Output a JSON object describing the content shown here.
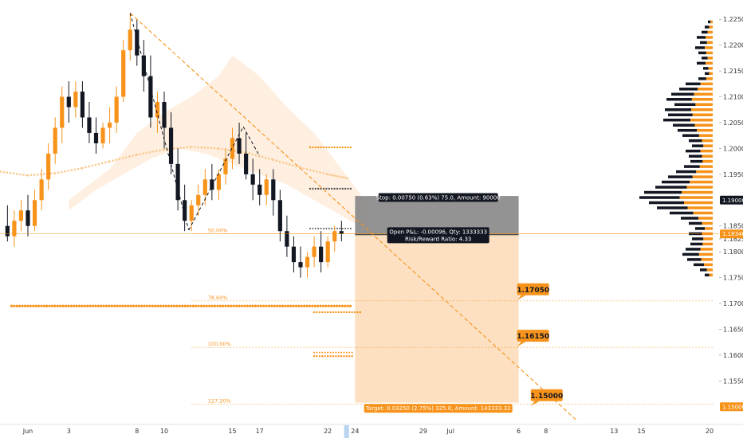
{
  "chart_data": {
    "type": "candlestick",
    "instrument_note": "",
    "x_tick_labels": [
      "Jun",
      "3",
      "8",
      "10",
      "15",
      "17",
      "22",
      "24",
      "29",
      "Jul",
      "6",
      "8",
      "13",
      "15",
      "20"
    ],
    "x_tick_days": [
      0,
      3,
      8,
      10,
      15,
      17,
      22,
      24,
      29,
      31,
      36,
      38,
      43,
      45,
      50
    ],
    "y_tick_labels": [
      "1.22500",
      "1.22000",
      "1.21500",
      "1.21000",
      "1.20500",
      "1.20000",
      "1.19500",
      "1.18500",
      "1.18250",
      "1.18000",
      "1.17500",
      "1.17000",
      "1.16500",
      "1.16000",
      "1.15500"
    ],
    "y_tick_values": [
      1.225,
      1.22,
      1.215,
      1.21,
      1.205,
      1.2,
      1.195,
      1.185,
      1.1825,
      1.18,
      1.175,
      1.17,
      1.165,
      1.16,
      1.155
    ],
    "ylim": [
      1.1475,
      1.2275
    ],
    "current_price_label": "1.18346",
    "current_price": 1.18346,
    "badge_1190": "1.19000",
    "badge_1150": "1.15000",
    "target_labels": [
      {
        "text": "1.17050",
        "value": 1.1705,
        "day": 37
      },
      {
        "text": "1.16150",
        "value": 1.1615,
        "day": 37
      },
      {
        "text": "1.15000",
        "value": 1.15,
        "day": 38
      }
    ],
    "fib_levels": [
      {
        "label": "50.00%",
        "value": 1.1835
      },
      {
        "label": "78.60%",
        "value": 1.1705
      },
      {
        "label": "100.00%",
        "value": 1.1615
      },
      {
        "label": "127.20%",
        "value": 1.1505
      }
    ],
    "position": {
      "type": "short",
      "entry": 1.1833,
      "stop": 1.1908,
      "target": 1.1508,
      "start_day": 24,
      "end_day": 36,
      "stop_label": "Stop: 0.00750 (0.63%) 75.0, Amount: 90000",
      "pnl_label": "Open P&L: -0.00096, Qty: 1333333",
      "rr_label": "Risk/Reward Ratio: 4.33",
      "target_label": "Target: 0.03250 (2.75%) 325.0, Amount: 143333.32"
    },
    "candles": [
      {
        "d": -1.5,
        "o": 1.185,
        "h": 1.189,
        "c": 1.183,
        "l": 1.182
      },
      {
        "d": -1,
        "o": 1.183,
        "h": 1.188,
        "c": 1.186,
        "l": 1.181
      },
      {
        "d": -0.5,
        "o": 1.186,
        "h": 1.19,
        "c": 1.188,
        "l": 1.184
      },
      {
        "d": 0,
        "o": 1.188,
        "h": 1.191,
        "c": 1.185,
        "l": 1.183
      },
      {
        "d": 0.5,
        "o": 1.185,
        "h": 1.192,
        "c": 1.19,
        "l": 1.184
      },
      {
        "d": 1,
        "o": 1.19,
        "h": 1.196,
        "c": 1.194,
        "l": 1.188
      },
      {
        "d": 1.5,
        "o": 1.194,
        "h": 1.201,
        "c": 1.199,
        "l": 1.192
      },
      {
        "d": 2,
        "o": 1.199,
        "h": 1.206,
        "c": 1.204,
        "l": 1.197
      },
      {
        "d": 2.5,
        "o": 1.204,
        "h": 1.212,
        "c": 1.21,
        "l": 1.201
      },
      {
        "d": 3,
        "o": 1.21,
        "h": 1.213,
        "c": 1.208,
        "l": 1.205
      },
      {
        "d": 3.5,
        "o": 1.208,
        "h": 1.213,
        "c": 1.211,
        "l": 1.206
      },
      {
        "d": 4,
        "o": 1.211,
        "h": 1.213,
        "c": 1.206,
        "l": 1.204
      },
      {
        "d": 4.5,
        "o": 1.206,
        "h": 1.209,
        "c": 1.203,
        "l": 1.201
      },
      {
        "d": 5,
        "o": 1.203,
        "h": 1.206,
        "c": 1.201,
        "l": 1.199
      },
      {
        "d": 5.5,
        "o": 1.201,
        "h": 1.205,
        "c": 1.204,
        "l": 1.2
      },
      {
        "d": 6,
        "o": 1.204,
        "h": 1.208,
        "c": 1.205,
        "l": 1.201
      },
      {
        "d": 6.5,
        "o": 1.205,
        "h": 1.212,
        "c": 1.21,
        "l": 1.203
      },
      {
        "d": 7,
        "o": 1.21,
        "h": 1.221,
        "c": 1.219,
        "l": 1.209
      },
      {
        "d": 7.5,
        "o": 1.219,
        "h": 1.226,
        "c": 1.223,
        "l": 1.217
      },
      {
        "d": 8,
        "o": 1.223,
        "h": 1.225,
        "c": 1.218,
        "l": 1.216
      },
      {
        "d": 8.5,
        "o": 1.218,
        "h": 1.221,
        "c": 1.214,
        "l": 1.211
      },
      {
        "d": 9,
        "o": 1.214,
        "h": 1.218,
        "c": 1.206,
        "l": 1.204
      },
      {
        "d": 9.5,
        "o": 1.206,
        "h": 1.211,
        "c": 1.209,
        "l": 1.203
      },
      {
        "d": 10,
        "o": 1.209,
        "h": 1.211,
        "c": 1.204,
        "l": 1.2
      },
      {
        "d": 10.5,
        "o": 1.204,
        "h": 1.207,
        "c": 1.197,
        "l": 1.195
      },
      {
        "d": 11,
        "o": 1.197,
        "h": 1.2,
        "c": 1.19,
        "l": 1.188
      },
      {
        "d": 11.5,
        "o": 1.19,
        "h": 1.193,
        "c": 1.186,
        "l": 1.184
      },
      {
        "d": 12,
        "o": 1.186,
        "h": 1.19,
        "c": 1.189,
        "l": 1.184
      },
      {
        "d": 12.5,
        "o": 1.189,
        "h": 1.193,
        "c": 1.191,
        "l": 1.187
      },
      {
        "d": 13,
        "o": 1.191,
        "h": 1.196,
        "c": 1.194,
        "l": 1.189
      },
      {
        "d": 13.5,
        "o": 1.194,
        "h": 1.197,
        "c": 1.192,
        "l": 1.19
      },
      {
        "d": 14,
        "o": 1.192,
        "h": 1.196,
        "c": 1.195,
        "l": 1.19
      },
      {
        "d": 14.5,
        "o": 1.195,
        "h": 1.2,
        "c": 1.198,
        "l": 1.193
      },
      {
        "d": 15,
        "o": 1.198,
        "h": 1.204,
        "c": 1.202,
        "l": 1.196
      },
      {
        "d": 15.5,
        "o": 1.202,
        "h": 1.205,
        "c": 1.199,
        "l": 1.197
      },
      {
        "d": 16,
        "o": 1.199,
        "h": 1.203,
        "c": 1.195,
        "l": 1.194
      },
      {
        "d": 16.5,
        "o": 1.195,
        "h": 1.198,
        "c": 1.193,
        "l": 1.19
      },
      {
        "d": 17,
        "o": 1.193,
        "h": 1.196,
        "c": 1.191,
        "l": 1.189
      },
      {
        "d": 17.5,
        "o": 1.191,
        "h": 1.195,
        "c": 1.194,
        "l": 1.189
      },
      {
        "d": 18,
        "o": 1.194,
        "h": 1.196,
        "c": 1.19,
        "l": 1.187
      },
      {
        "d": 18.5,
        "o": 1.19,
        "h": 1.192,
        "c": 1.184,
        "l": 1.182
      },
      {
        "d": 19,
        "o": 1.184,
        "h": 1.187,
        "c": 1.181,
        "l": 1.179
      },
      {
        "d": 19.5,
        "o": 1.181,
        "h": 1.183,
        "c": 1.178,
        "l": 1.176
      },
      {
        "d": 20,
        "o": 1.178,
        "h": 1.181,
        "c": 1.177,
        "l": 1.175
      },
      {
        "d": 20.5,
        "o": 1.177,
        "h": 1.18,
        "c": 1.179,
        "l": 1.175
      },
      {
        "d": 21,
        "o": 1.179,
        "h": 1.183,
        "c": 1.181,
        "l": 1.177
      },
      {
        "d": 21.5,
        "o": 1.181,
        "h": 1.184,
        "c": 1.178,
        "l": 1.176
      },
      {
        "d": 22,
        "o": 1.178,
        "h": 1.183,
        "c": 1.182,
        "l": 1.177
      },
      {
        "d": 22.5,
        "o": 1.182,
        "h": 1.185,
        "c": 1.184,
        "l": 1.18
      },
      {
        "d": 23,
        "o": 1.184,
        "h": 1.186,
        "c": 1.1835,
        "l": 1.182
      }
    ],
    "volume_profile": [
      {
        "p": 1.2245,
        "w": 6
      },
      {
        "p": 1.2235,
        "w": 10
      },
      {
        "p": 1.2225,
        "w": 14
      },
      {
        "p": 1.2215,
        "w": 20
      },
      {
        "p": 1.2205,
        "w": 16
      },
      {
        "p": 1.2195,
        "w": 22
      },
      {
        "p": 1.2185,
        "w": 18
      },
      {
        "p": 1.2175,
        "w": 14
      },
      {
        "p": 1.2165,
        "w": 20
      },
      {
        "p": 1.2155,
        "w": 12
      },
      {
        "p": 1.2145,
        "w": 10
      },
      {
        "p": 1.2135,
        "w": 18
      },
      {
        "p": 1.2125,
        "w": 34
      },
      {
        "p": 1.2115,
        "w": 42
      },
      {
        "p": 1.2105,
        "w": 52
      },
      {
        "p": 1.2095,
        "w": 58
      },
      {
        "p": 1.2085,
        "w": 48
      },
      {
        "p": 1.2075,
        "w": 60
      },
      {
        "p": 1.2065,
        "w": 56
      },
      {
        "p": 1.2055,
        "w": 62
      },
      {
        "p": 1.2045,
        "w": 50
      },
      {
        "p": 1.2035,
        "w": 44
      },
      {
        "p": 1.2025,
        "w": 38
      },
      {
        "p": 1.2015,
        "w": 30
      },
      {
        "p": 1.2005,
        "w": 26
      },
      {
        "p": 1.1995,
        "w": 34
      },
      {
        "p": 1.1985,
        "w": 30
      },
      {
        "p": 1.1975,
        "w": 28
      },
      {
        "p": 1.1965,
        "w": 36
      },
      {
        "p": 1.1955,
        "w": 46
      },
      {
        "p": 1.1945,
        "w": 56
      },
      {
        "p": 1.1935,
        "w": 64
      },
      {
        "p": 1.1925,
        "w": 72
      },
      {
        "p": 1.1915,
        "w": 86
      },
      {
        "p": 1.1905,
        "w": 92
      },
      {
        "p": 1.1895,
        "w": 80
      },
      {
        "p": 1.1885,
        "w": 70
      },
      {
        "p": 1.1875,
        "w": 54
      },
      {
        "p": 1.1865,
        "w": 40
      },
      {
        "p": 1.1855,
        "w": 30
      },
      {
        "p": 1.1845,
        "w": 22
      },
      {
        "p": 1.1835,
        "w": 30
      },
      {
        "p": 1.1825,
        "w": 26
      },
      {
        "p": 1.1815,
        "w": 28
      },
      {
        "p": 1.1805,
        "w": 34
      },
      {
        "p": 1.1795,
        "w": 38
      },
      {
        "p": 1.1785,
        "w": 32
      },
      {
        "p": 1.1775,
        "w": 24
      },
      {
        "p": 1.1765,
        "w": 16
      },
      {
        "p": 1.1755,
        "w": 10
      }
    ]
  }
}
